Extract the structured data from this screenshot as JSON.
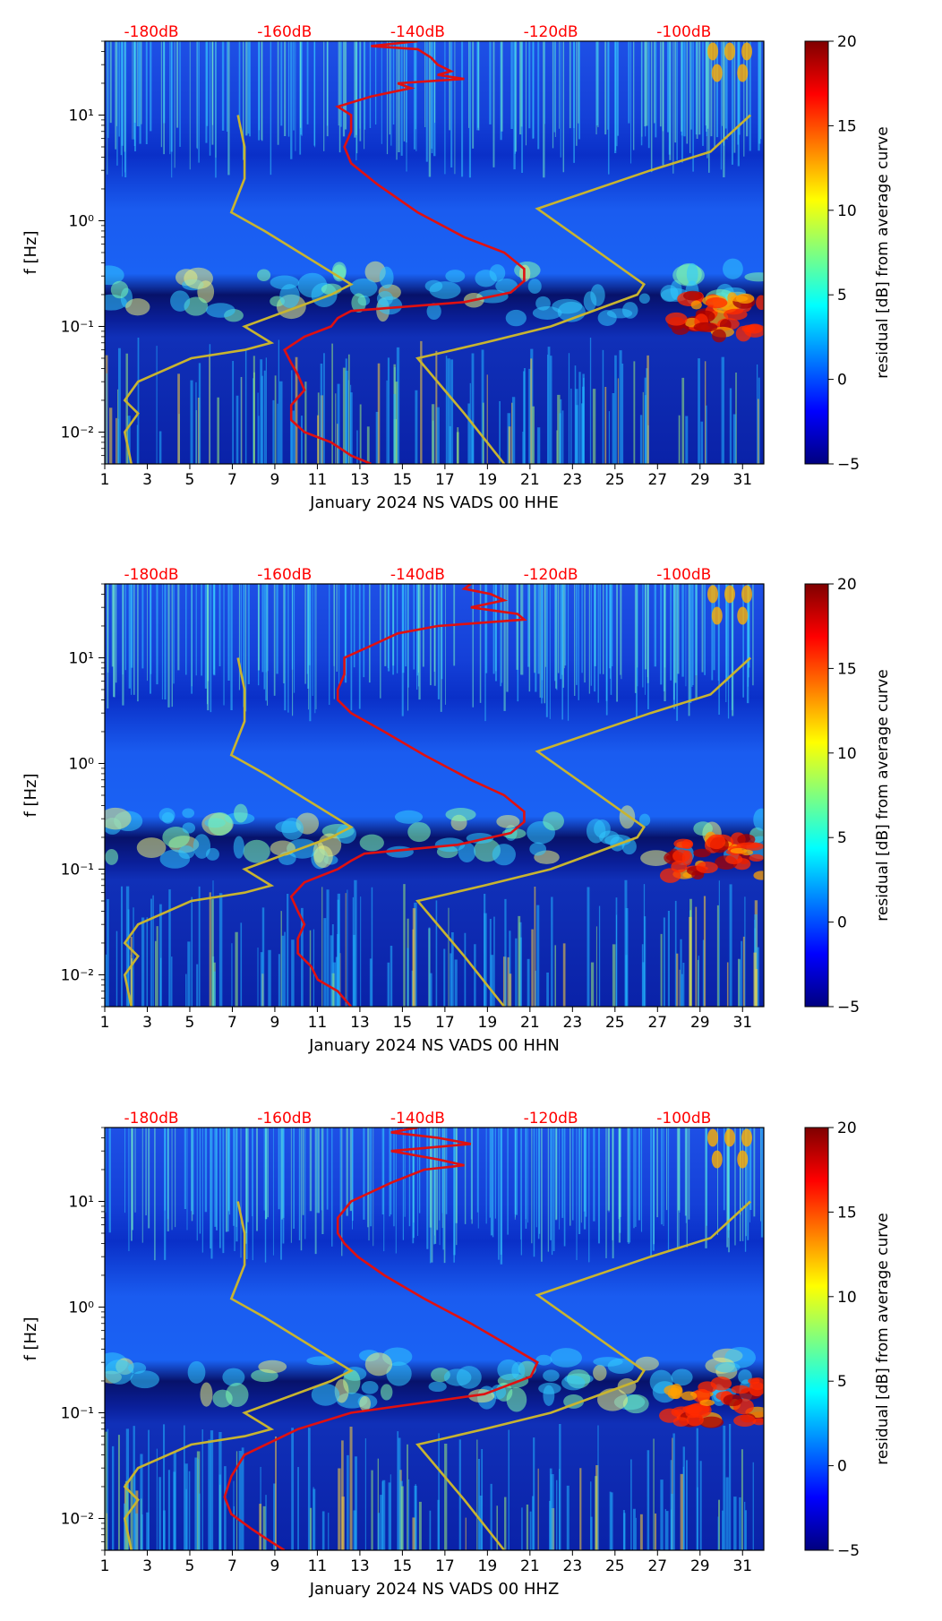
{
  "colorbar": {
    "label": "residual [dB] from average curve",
    "ticks": [
      "20",
      "15",
      "10",
      "5",
      "0",
      "−5"
    ],
    "tick_values": [
      20,
      15,
      10,
      5,
      0,
      -5
    ],
    "range": [
      -5,
      20
    ],
    "colormap": [
      "#00007f",
      "#0000ff",
      "#007fff",
      "#00ffff",
      "#7fff7f",
      "#ffff00",
      "#ff7f00",
      "#ff0000",
      "#7f0000"
    ]
  },
  "colors": {
    "psd_curve": "#e01010",
    "noise_model": "#c8b430",
    "top_axis_text": "#ff0000"
  },
  "charts": [
    {
      "name": "hhe",
      "ylabel": "f [Hz]",
      "xlabel": "January 2024 NS VADS 00 HHE",
      "x_tick_labels": [
        "1",
        "3",
        "5",
        "7",
        "9",
        "11",
        "13",
        "15",
        "17",
        "19",
        "21",
        "23",
        "25",
        "27",
        "29",
        "31"
      ],
      "y_tick_labels": [
        "10¹",
        "10⁰",
        "10⁻¹",
        "10⁻²"
      ],
      "top_tick_labels": [
        "-180dB",
        "-160dB",
        "-140dB",
        "-120dB",
        "-100dB"
      ]
    },
    {
      "name": "hhn",
      "ylabel": "f [Hz]",
      "xlabel": "January 2024 NS VADS 00 HHN",
      "x_tick_labels": [
        "1",
        "3",
        "5",
        "7",
        "9",
        "11",
        "13",
        "15",
        "17",
        "19",
        "21",
        "23",
        "25",
        "27",
        "29",
        "31"
      ],
      "y_tick_labels": [
        "10¹",
        "10⁰",
        "10⁻¹",
        "10⁻²"
      ],
      "top_tick_labels": [
        "-180dB",
        "-160dB",
        "-140dB",
        "-120dB",
        "-100dB"
      ]
    },
    {
      "name": "hhz",
      "ylabel": "f [Hz]",
      "xlabel": "January 2024 NS VADS 00 HHZ",
      "x_tick_labels": [
        "1",
        "3",
        "5",
        "7",
        "9",
        "11",
        "13",
        "15",
        "17",
        "19",
        "21",
        "23",
        "25",
        "27",
        "29",
        "31"
      ],
      "y_tick_labels": [
        "10¹",
        "10⁰",
        "10⁻¹",
        "10⁻²"
      ],
      "top_tick_labels": [
        "-180dB",
        "-160dB",
        "-140dB",
        "-120dB",
        "-100dB"
      ]
    }
  ],
  "chart_data": [
    {
      "type": "heatmap",
      "title": "",
      "xlabel": "January 2024 NS VADS 00 HHE",
      "ylabel": "f [Hz]",
      "x_range_day": [
        1,
        32
      ],
      "y_range_hz": [
        0.005,
        50
      ],
      "y_scale": "log",
      "x_ticks": [
        1,
        3,
        5,
        7,
        9,
        11,
        13,
        15,
        17,
        19,
        21,
        23,
        25,
        27,
        29,
        31
      ],
      "y_ticks_hz": [
        10,
        1,
        0.1,
        0.01
      ],
      "secondary_x_axis": {
        "label_position": "top",
        "ticks_db": [
          -180,
          -160,
          -140,
          -120,
          -100
        ],
        "range_db": [
          -187,
          -88
        ]
      },
      "psd_curve": {
        "db": [
          -140,
          -147,
          -140,
          -138,
          -137,
          -135,
          -137,
          -133,
          -143,
          -141,
          -147,
          -152,
          -150,
          -150,
          -151,
          -150,
          -146,
          -140,
          -133,
          -127,
          -124,
          -124,
          -126,
          -133,
          -150,
          -152,
          -153,
          -157,
          -160,
          -159,
          -158,
          -157,
          -159,
          -159,
          -157,
          -153,
          -150,
          -147
        ],
        "hz": [
          50,
          45,
          42,
          35,
          30,
          26,
          24,
          22,
          20,
          18,
          15,
          12,
          10,
          7,
          5,
          3.5,
          2.2,
          1.2,
          0.7,
          0.5,
          0.35,
          0.27,
          0.21,
          0.17,
          0.14,
          0.12,
          0.1,
          0.08,
          0.06,
          0.045,
          0.035,
          0.025,
          0.018,
          0.013,
          0.01,
          0.008,
          0.006,
          0.005
        ]
      },
      "noise_models": {
        "low": {
          "db": [
            -167,
            -166,
            -166,
            -168,
            -163,
            -150,
            -153,
            -166,
            -162,
            -166,
            -174,
            -182,
            -184,
            -182,
            -184,
            -183
          ],
          "hz": [
            10,
            5,
            2.5,
            1.2,
            0.8,
            0.25,
            0.2,
            0.1,
            0.07,
            0.06,
            0.05,
            0.03,
            0.02,
            0.015,
            0.01,
            0.005
          ]
        },
        "high": {
          "db": [
            -90,
            -96,
            -105,
            -122,
            -106,
            -107,
            -120,
            -130,
            -140,
            -133,
            -127
          ],
          "hz": [
            10,
            4.5,
            3,
            1.3,
            0.25,
            0.2,
            0.1,
            0.07,
            0.05,
            0.015,
            0.005
          ]
        }
      }
    },
    {
      "type": "heatmap",
      "title": "",
      "xlabel": "January 2024 NS VADS 00 HHN",
      "ylabel": "f [Hz]",
      "x_range_day": [
        1,
        32
      ],
      "y_range_hz": [
        0.005,
        50
      ],
      "y_scale": "log",
      "x_ticks": [
        1,
        3,
        5,
        7,
        9,
        11,
        13,
        15,
        17,
        19,
        21,
        23,
        25,
        27,
        29,
        31
      ],
      "y_ticks_hz": [
        10,
        1,
        0.1,
        0.01
      ],
      "secondary_x_axis": {
        "label_position": "top",
        "ticks_db": [
          -180,
          -160,
          -140,
          -120,
          -100
        ],
        "range_db": [
          -187,
          -88
        ]
      },
      "psd_curve": {
        "db": [
          -132,
          -133,
          -129,
          -127,
          -132,
          -125,
          -124,
          -128,
          -137,
          -143,
          -147,
          -151,
          -151,
          -152,
          -152,
          -150,
          -145,
          -139,
          -132,
          -127,
          -124,
          -124,
          -126,
          -134,
          -148,
          -150,
          -152,
          -157,
          -159,
          -158,
          -157,
          -158,
          -158,
          -156,
          -155,
          -152,
          -150
        ],
        "hz": [
          50,
          45,
          40,
          35,
          30,
          26,
          23,
          22,
          20,
          17,
          13,
          10,
          7,
          5,
          4,
          3,
          2,
          1.2,
          0.7,
          0.5,
          0.35,
          0.28,
          0.22,
          0.17,
          0.14,
          0.12,
          0.1,
          0.075,
          0.055,
          0.04,
          0.03,
          0.022,
          0.016,
          0.012,
          0.009,
          0.007,
          0.005
        ]
      },
      "noise_models": {
        "low": {
          "db": [
            -167,
            -166,
            -166,
            -168,
            -163,
            -150,
            -153,
            -166,
            -162,
            -166,
            -174,
            -182,
            -184,
            -182,
            -184,
            -183
          ],
          "hz": [
            10,
            5,
            2.5,
            1.2,
            0.8,
            0.25,
            0.2,
            0.1,
            0.07,
            0.06,
            0.05,
            0.03,
            0.02,
            0.015,
            0.01,
            0.005
          ]
        },
        "high": {
          "db": [
            -90,
            -96,
            -105,
            -122,
            -106,
            -107,
            -120,
            -130,
            -140,
            -133,
            -127
          ],
          "hz": [
            10,
            4.5,
            3,
            1.3,
            0.25,
            0.2,
            0.1,
            0.07,
            0.05,
            0.015,
            0.005
          ]
        }
      }
    },
    {
      "type": "heatmap",
      "title": "",
      "xlabel": "January 2024 NS VADS 00 HHZ",
      "ylabel": "f [Hz]",
      "x_range_day": [
        1,
        32
      ],
      "y_range_hz": [
        0.005,
        50
      ],
      "y_scale": "log",
      "x_ticks": [
        1,
        3,
        5,
        7,
        9,
        11,
        13,
        15,
        17,
        19,
        21,
        23,
        25,
        27,
        29,
        31
      ],
      "y_ticks_hz": [
        10,
        1,
        0.1,
        0.01
      ],
      "secondary_x_axis": {
        "label_position": "top",
        "ticks_db": [
          -180,
          -160,
          -140,
          -120,
          -100
        ],
        "range_db": [
          -187,
          -88
        ]
      },
      "psd_curve": {
        "db": [
          -140,
          -144,
          -137,
          -132,
          -144,
          -137,
          -133,
          -139,
          -144,
          -150,
          -152,
          -152,
          -151,
          -149,
          -145,
          -139,
          -132,
          -128,
          -122,
          -123,
          -130,
          -150,
          -158,
          -166,
          -168,
          -169,
          -168,
          -165,
          -162,
          -160
        ],
        "hz": [
          50,
          45,
          40,
          35,
          30,
          25,
          22,
          20,
          15,
          10,
          7,
          5,
          4,
          3,
          2,
          1.2,
          0.7,
          0.5,
          0.3,
          0.22,
          0.15,
          0.1,
          0.07,
          0.04,
          0.025,
          0.016,
          0.011,
          0.008,
          0.006,
          0.005
        ]
      },
      "noise_models": {
        "low": {
          "db": [
            -167,
            -166,
            -166,
            -168,
            -163,
            -150,
            -153,
            -166,
            -162,
            -166,
            -174,
            -182,
            -184,
            -182,
            -184,
            -183
          ],
          "hz": [
            10,
            5,
            2.5,
            1.2,
            0.8,
            0.25,
            0.2,
            0.1,
            0.07,
            0.06,
            0.05,
            0.03,
            0.02,
            0.015,
            0.01,
            0.005
          ]
        },
        "high": {
          "db": [
            -90,
            -96,
            -105,
            -122,
            -106,
            -107,
            -120,
            -130,
            -140,
            -133,
            -127
          ],
          "hz": [
            10,
            4.5,
            3,
            1.3,
            0.25,
            0.2,
            0.1,
            0.07,
            0.05,
            0.015,
            0.005
          ]
        }
      }
    }
  ]
}
